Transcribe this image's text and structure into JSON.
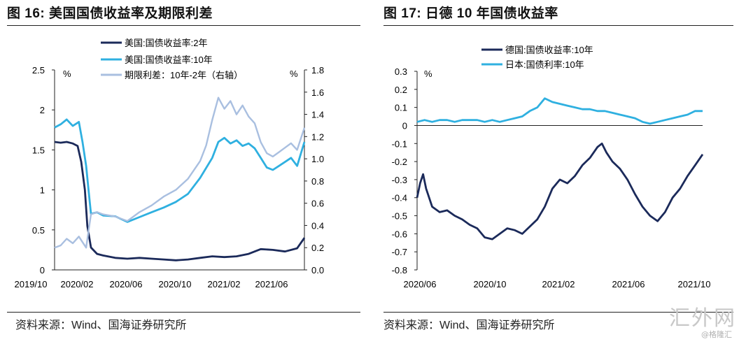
{
  "chart_data": [
    {
      "type": "line",
      "title": "图 16:  美国国债收益率及期限利差",
      "source": "资料来源：Wind、国海证券研究所",
      "y_unit_left": "%",
      "y_unit_right": "%",
      "ylim_left": [
        0,
        2.5
      ],
      "ylim_right": [
        0,
        1.8
      ],
      "yticks_left": [
        "0",
        "0.5",
        "1",
        "1.5",
        "2",
        "2.5"
      ],
      "yticks_right": [
        "0.0",
        "0.2",
        "0.4",
        "0.6",
        "0.8",
        "1.0",
        "1.2",
        "1.4",
        "1.6",
        "1.8"
      ],
      "x_ticks": [
        "2019/10",
        "2020/02",
        "2020/06",
        "2020/10",
        "2021/02",
        "2021/06"
      ],
      "legend": [
        "美国:国债收益率:2年",
        "美国:国债收益率:10年",
        "期限利差：10年-2年（右轴）"
      ],
      "series": [
        {
          "name": "美国:国债收益率:2年",
          "axis": "left",
          "color": "#1b2a5a",
          "points": [
            [
              0,
              1.6
            ],
            [
              0.5,
              1.59
            ],
            [
              1,
              1.6
            ],
            [
              1.5,
              1.58
            ],
            [
              1.9,
              1.55
            ],
            [
              2.2,
              1.35
            ],
            [
              2.5,
              1.0
            ],
            [
              2.7,
              0.55
            ],
            [
              3,
              0.28
            ],
            [
              3.5,
              0.2
            ],
            [
              4,
              0.18
            ],
            [
              5,
              0.15
            ],
            [
              6,
              0.14
            ],
            [
              7,
              0.15
            ],
            [
              8,
              0.14
            ],
            [
              9,
              0.13
            ],
            [
              10,
              0.12
            ],
            [
              11,
              0.13
            ],
            [
              12,
              0.15
            ],
            [
              13,
              0.17
            ],
            [
              14,
              0.16
            ],
            [
              15,
              0.17
            ],
            [
              16,
              0.2
            ],
            [
              16.5,
              0.23
            ],
            [
              17,
              0.26
            ],
            [
              18,
              0.25
            ],
            [
              19,
              0.23
            ],
            [
              20,
              0.27
            ],
            [
              20.6,
              0.4
            ]
          ]
        },
        {
          "name": "美国:国债收益率:10年",
          "axis": "left",
          "color": "#2fb0e0",
          "points": [
            [
              0,
              1.78
            ],
            [
              0.5,
              1.82
            ],
            [
              1,
              1.88
            ],
            [
              1.5,
              1.8
            ],
            [
              2,
              1.85
            ],
            [
              2.3,
              1.6
            ],
            [
              2.6,
              1.3
            ],
            [
              2.8,
              1.0
            ],
            [
              3,
              0.7
            ],
            [
              3.5,
              0.72
            ],
            [
              4,
              0.68
            ],
            [
              5,
              0.67
            ],
            [
              6,
              0.6
            ],
            [
              7,
              0.66
            ],
            [
              8,
              0.72
            ],
            [
              9,
              0.78
            ],
            [
              10,
              0.85
            ],
            [
              11,
              0.95
            ],
            [
              12,
              1.15
            ],
            [
              13,
              1.4
            ],
            [
              13.5,
              1.6
            ],
            [
              14,
              1.65
            ],
            [
              14.5,
              1.58
            ],
            [
              15,
              1.62
            ],
            [
              15.5,
              1.55
            ],
            [
              16,
              1.58
            ],
            [
              16.5,
              1.52
            ],
            [
              17,
              1.4
            ],
            [
              17.5,
              1.28
            ],
            [
              18,
              1.25
            ],
            [
              18.5,
              1.3
            ],
            [
              19,
              1.35
            ],
            [
              19.5,
              1.4
            ],
            [
              20,
              1.3
            ],
            [
              20.6,
              1.6
            ]
          ]
        },
        {
          "name": "期限利差：10年-2年（右轴）",
          "axis": "right",
          "color": "#a9bfe0",
          "points": [
            [
              0,
              0.2
            ],
            [
              0.5,
              0.22
            ],
            [
              1,
              0.28
            ],
            [
              1.5,
              0.24
            ],
            [
              2,
              0.3
            ],
            [
              2.3,
              0.25
            ],
            [
              2.6,
              0.2
            ],
            [
              2.8,
              0.35
            ],
            [
              3,
              0.5
            ],
            [
              3.5,
              0.52
            ],
            [
              4,
              0.5
            ],
            [
              5,
              0.48
            ],
            [
              6,
              0.44
            ],
            [
              7,
              0.52
            ],
            [
              8,
              0.58
            ],
            [
              9,
              0.66
            ],
            [
              10,
              0.72
            ],
            [
              11,
              0.82
            ],
            [
              12,
              0.98
            ],
            [
              12.5,
              1.12
            ],
            [
              13,
              1.35
            ],
            [
              13.5,
              1.55
            ],
            [
              14,
              1.45
            ],
            [
              14.5,
              1.52
            ],
            [
              15,
              1.4
            ],
            [
              15.5,
              1.48
            ],
            [
              16,
              1.38
            ],
            [
              16.5,
              1.32
            ],
            [
              17,
              1.15
            ],
            [
              17.5,
              1.05
            ],
            [
              18,
              1.02
            ],
            [
              18.5,
              1.06
            ],
            [
              19,
              1.1
            ],
            [
              19.5,
              1.14
            ],
            [
              20,
              1.08
            ],
            [
              20.6,
              1.28
            ]
          ]
        }
      ]
    },
    {
      "type": "line",
      "title": "图 17:  日德 10 年国债收益率",
      "source": "资料来源：Wind、国海证券研究所",
      "y_unit_left": "%",
      "ylim": [
        -0.8,
        0.3
      ],
      "yticks": [
        "0.3",
        "0.2",
        "0.1",
        "0",
        "-0.1",
        "-0.2",
        "-0.3",
        "-0.4",
        "-0.5",
        "-0.6",
        "-0.7",
        "-0.8"
      ],
      "x_ticks": [
        "2020/06",
        "2020/10",
        "2021/02",
        "2021/06",
        "2021/10"
      ],
      "legend": [
        "德国:国债收益率:10年",
        "日本:国债利率:10年"
      ],
      "series": [
        {
          "name": "德国:国债收益率:10年",
          "color": "#1b2a5a",
          "points": [
            [
              0,
              -0.4
            ],
            [
              0.2,
              -0.32
            ],
            [
              0.4,
              -0.27
            ],
            [
              0.6,
              -0.35
            ],
            [
              1,
              -0.45
            ],
            [
              1.5,
              -0.48
            ],
            [
              2,
              -0.47
            ],
            [
              2.5,
              -0.5
            ],
            [
              3,
              -0.52
            ],
            [
              3.5,
              -0.55
            ],
            [
              4,
              -0.57
            ],
            [
              4.5,
              -0.62
            ],
            [
              5,
              -0.63
            ],
            [
              5.5,
              -0.6
            ],
            [
              6,
              -0.57
            ],
            [
              6.5,
              -0.58
            ],
            [
              7,
              -0.6
            ],
            [
              7.5,
              -0.56
            ],
            [
              8,
              -0.52
            ],
            [
              8.5,
              -0.45
            ],
            [
              9,
              -0.35
            ],
            [
              9.5,
              -0.3
            ],
            [
              10,
              -0.32
            ],
            [
              10.5,
              -0.28
            ],
            [
              11,
              -0.22
            ],
            [
              11.5,
              -0.18
            ],
            [
              12,
              -0.12
            ],
            [
              12.3,
              -0.1
            ],
            [
              12.6,
              -0.15
            ],
            [
              13,
              -0.2
            ],
            [
              13.5,
              -0.24
            ],
            [
              14,
              -0.3
            ],
            [
              14.5,
              -0.38
            ],
            [
              15,
              -0.45
            ],
            [
              15.5,
              -0.5
            ],
            [
              16,
              -0.53
            ],
            [
              16.5,
              -0.48
            ],
            [
              17,
              -0.4
            ],
            [
              17.5,
              -0.35
            ],
            [
              18,
              -0.28
            ],
            [
              18.5,
              -0.22
            ],
            [
              19,
              -0.16
            ]
          ]
        },
        {
          "name": "日本:国债利率:10年",
          "color": "#2fb0e0",
          "points": [
            [
              0,
              0.02
            ],
            [
              0.5,
              0.03
            ],
            [
              1,
              0.02
            ],
            [
              1.5,
              0.03
            ],
            [
              2,
              0.03
            ],
            [
              2.5,
              0.02
            ],
            [
              3,
              0.03
            ],
            [
              3.5,
              0.03
            ],
            [
              4,
              0.03
            ],
            [
              4.5,
              0.02
            ],
            [
              5,
              0.03
            ],
            [
              5.5,
              0.02
            ],
            [
              6,
              0.03
            ],
            [
              6.5,
              0.04
            ],
            [
              7,
              0.05
            ],
            [
              7.5,
              0.08
            ],
            [
              8,
              0.1
            ],
            [
              8.5,
              0.15
            ],
            [
              9,
              0.13
            ],
            [
              9.5,
              0.12
            ],
            [
              10,
              0.11
            ],
            [
              10.5,
              0.1
            ],
            [
              11,
              0.09
            ],
            [
              11.5,
              0.09
            ],
            [
              12,
              0.08
            ],
            [
              12.5,
              0.08
            ],
            [
              13,
              0.07
            ],
            [
              13.5,
              0.06
            ],
            [
              14,
              0.05
            ],
            [
              14.5,
              0.04
            ],
            [
              15,
              0.02
            ],
            [
              15.5,
              0.01
            ],
            [
              16,
              0.02
            ],
            [
              16.5,
              0.03
            ],
            [
              17,
              0.04
            ],
            [
              17.5,
              0.05
            ],
            [
              18,
              0.06
            ],
            [
              18.5,
              0.08
            ],
            [
              19,
              0.08
            ]
          ]
        }
      ]
    }
  ],
  "watermark": {
    "text": "汇外网",
    "sub": "@格隆汇"
  }
}
